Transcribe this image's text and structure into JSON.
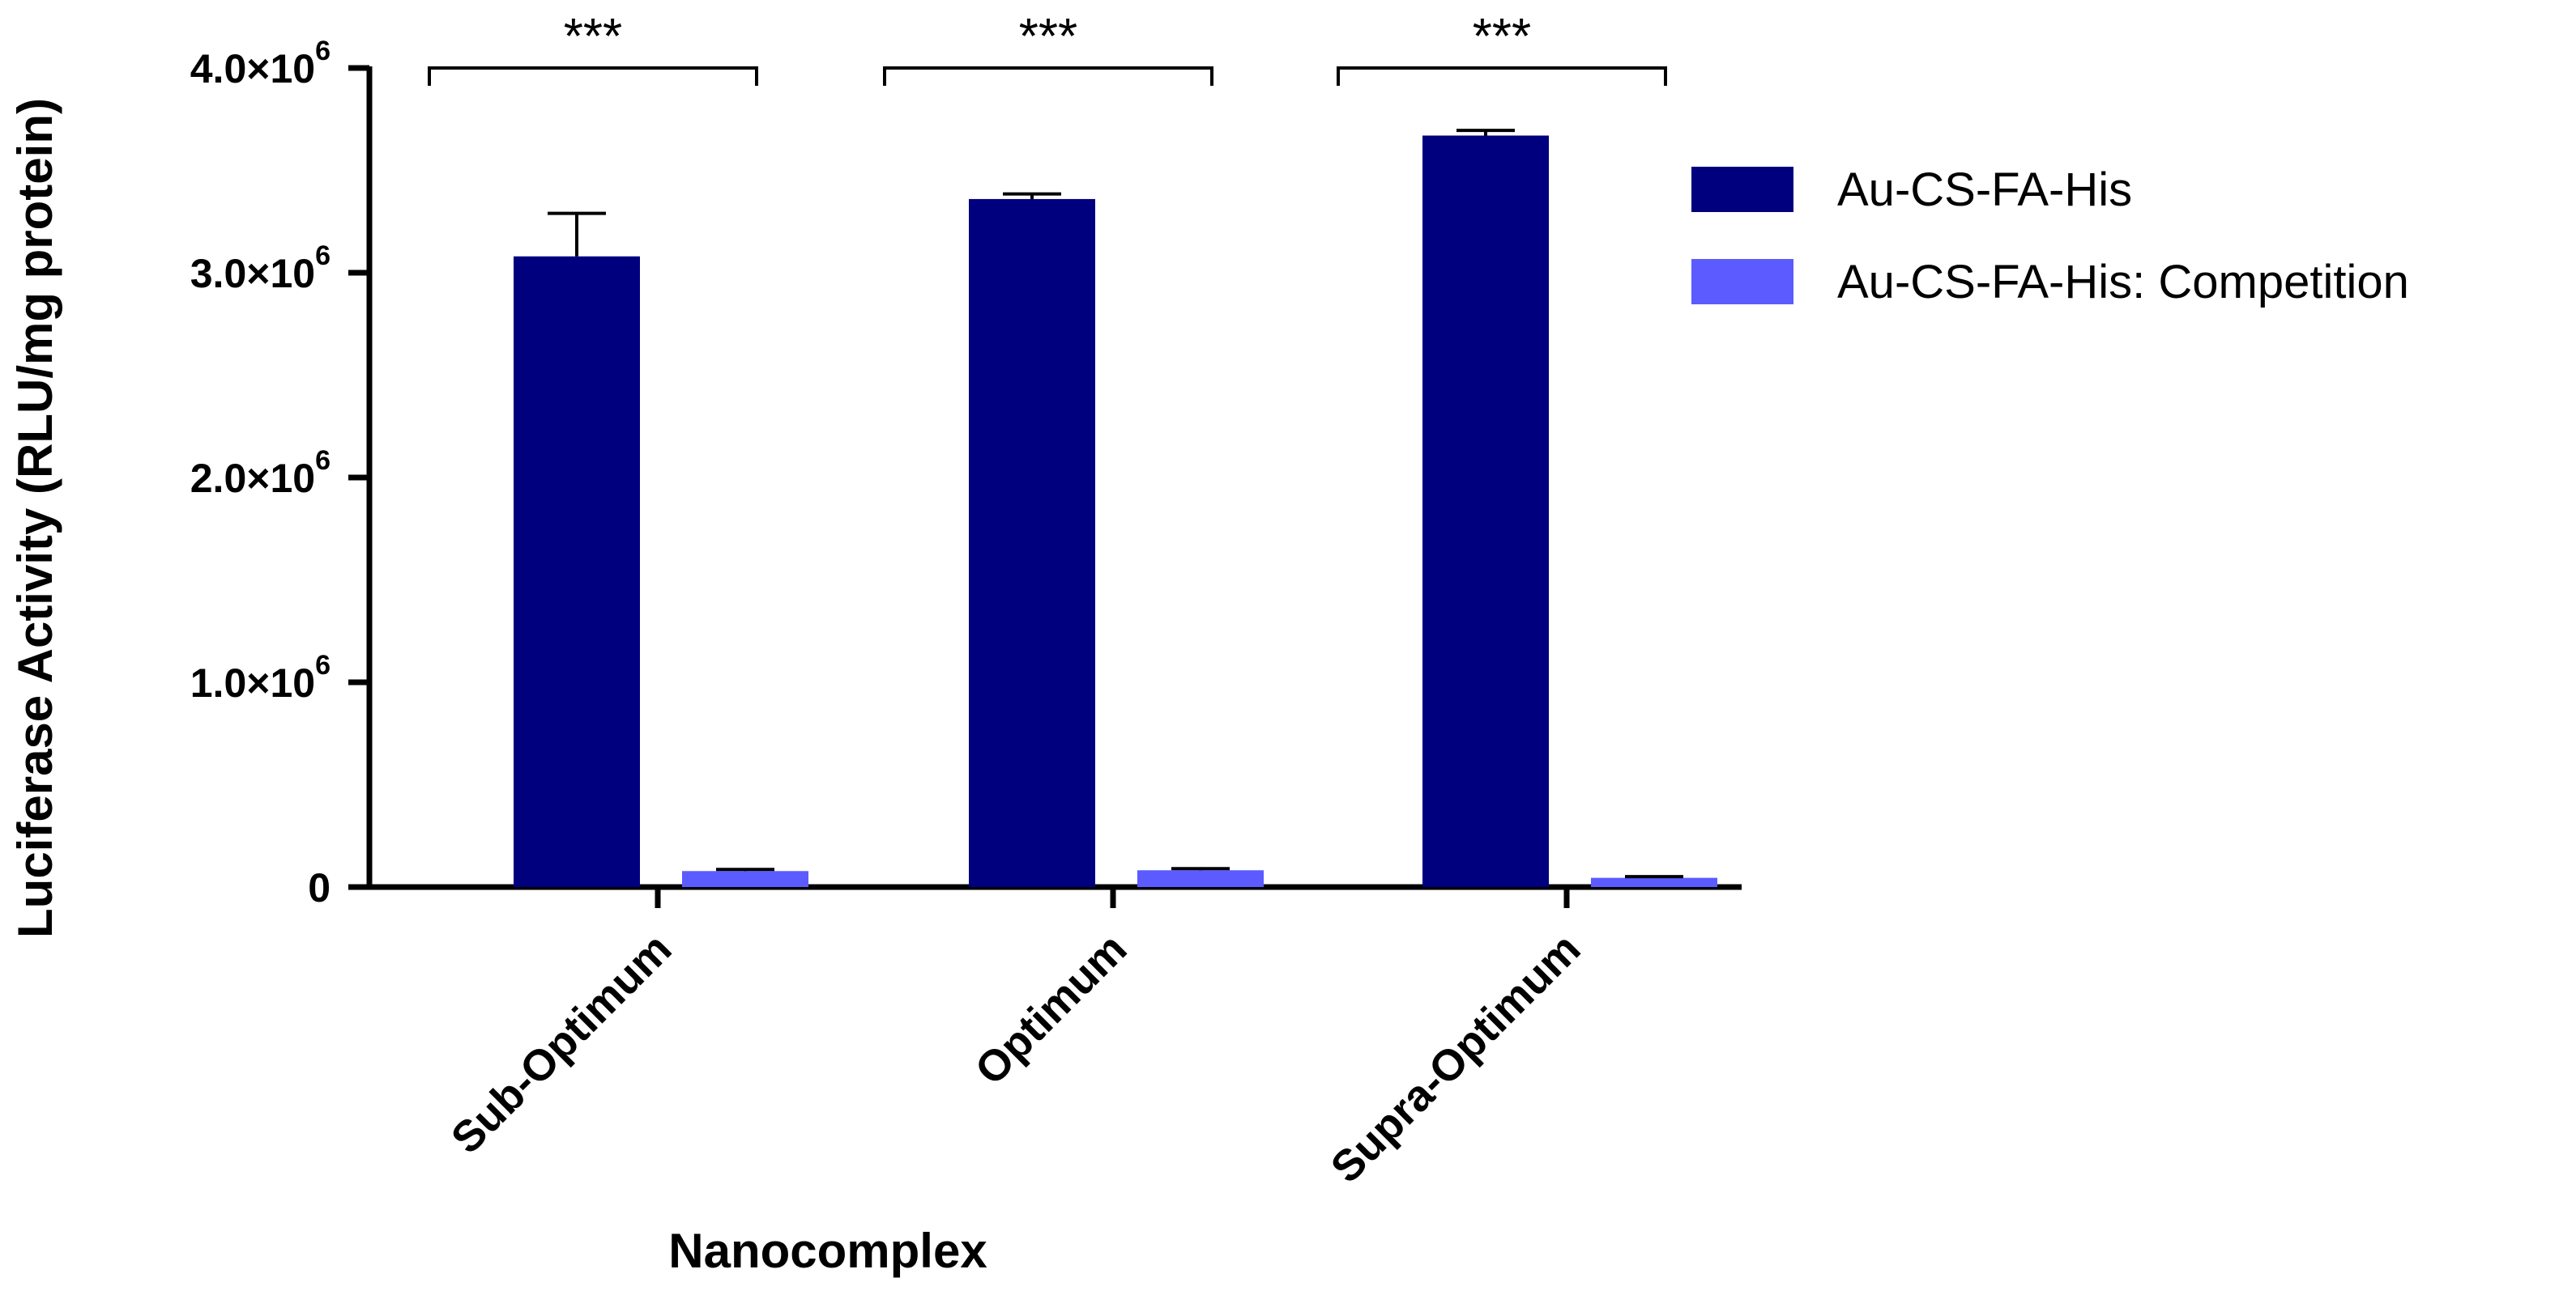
{
  "chart_data": {
    "type": "bar",
    "title": "",
    "xlabel": "Nanocomplex",
    "ylabel": "Luciferase Activity (RLU/mg protein)",
    "ylim": [
      0,
      4000000
    ],
    "yticks": [
      {
        "value": 0,
        "label": "0",
        "exponent": ""
      },
      {
        "value": 1000000,
        "label": "1.0×10",
        "exponent": "6"
      },
      {
        "value": 2000000,
        "label": "2.0×10",
        "exponent": "6"
      },
      {
        "value": 3000000,
        "label": "3.0×10",
        "exponent": "6"
      },
      {
        "value": 4000000,
        "label": "4.0×10",
        "exponent": "6"
      }
    ],
    "categories": [
      "Sub-Optimum",
      "Optimum",
      "Supra-Optimum"
    ],
    "series": [
      {
        "name": "Au-CS-FA-His",
        "color": "#00007f",
        "values": [
          3080000,
          3360000,
          3670000
        ],
        "errors": [
          210000,
          25000,
          25000
        ]
      },
      {
        "name": "Au-CS-FA-His: Competition",
        "color": "#5b5bff",
        "values": [
          78000,
          82000,
          45000
        ],
        "errors": [
          8000,
          8000,
          6000
        ]
      }
    ],
    "significance": [
      {
        "category": "Sub-Optimum",
        "label": "***"
      },
      {
        "category": "Optimum",
        "label": "***"
      },
      {
        "category": "Supra-Optimum",
        "label": "***"
      }
    ],
    "legend_position": "top-right",
    "grid": false
  }
}
